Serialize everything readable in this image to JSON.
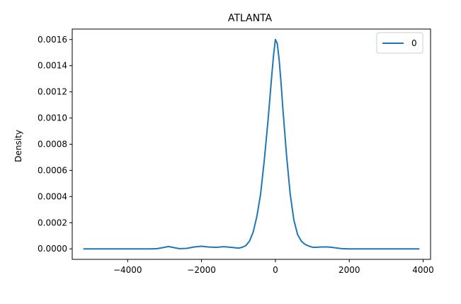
{
  "chart_data": {
    "type": "line",
    "title": "ATLANTA",
    "xlabel": "",
    "ylabel": "Density",
    "xlim": [
      -5500,
      4200
    ],
    "ylim": [
      -8e-05,
      0.00168
    ],
    "x_ticks": [
      -4000,
      -2000,
      0,
      2000,
      4000
    ],
    "x_tick_labels": [
      "−4000",
      "−2000",
      "0",
      "2000",
      "4000"
    ],
    "y_ticks": [
      0,
      0.0002,
      0.0004,
      0.0006,
      0.0008,
      0.001,
      0.0012,
      0.0014,
      0.0016
    ],
    "y_tick_labels": [
      "0.0000",
      "0.0002",
      "0.0004",
      "0.0006",
      "0.0008",
      "0.0010",
      "0.0012",
      "0.0014",
      "0.0016"
    ],
    "grid": false,
    "legend_position": "top-right",
    "series": [
      {
        "name": "0",
        "color": "#1f77b4",
        "x": [
          -5200,
          -4000,
          -3400,
          -3200,
          -3000,
          -2900,
          -2800,
          -2600,
          -2400,
          -2200,
          -2000,
          -1800,
          -1600,
          -1400,
          -1200,
          -1000,
          -900,
          -800,
          -700,
          -600,
          -500,
          -400,
          -300,
          -200,
          -100,
          -50,
          0,
          50,
          100,
          150,
          200,
          300,
          400,
          500,
          600,
          700,
          800,
          900,
          1000,
          1100,
          1200,
          1300,
          1400,
          1500,
          1600,
          1700,
          1800,
          2000,
          2500,
          3000,
          3900
        ],
        "values": [
          0,
          0,
          0,
          2e-06,
          1.2e-05,
          1.8e-05,
          1.3e-05,
          2e-06,
          4e-06,
          1.5e-05,
          2e-05,
          1.4e-05,
          1.2e-05,
          1.7e-05,
          1.2e-05,
          6e-06,
          1.2e-05,
          2.5e-05,
          6e-05,
          0.00013,
          0.00025,
          0.00042,
          0.00068,
          0.00098,
          0.00132,
          0.00148,
          0.0016,
          0.00157,
          0.00145,
          0.00128,
          0.00108,
          0.00072,
          0.00042,
          0.00022,
          0.00011,
          6e-05,
          3.5e-05,
          2.2e-05,
          1.3e-05,
          1.2e-05,
          1.4e-05,
          1.5e-05,
          1.5e-05,
          1.3e-05,
          9e-06,
          5e-06,
          2e-06,
          0,
          0,
          0,
          0
        ]
      }
    ]
  }
}
